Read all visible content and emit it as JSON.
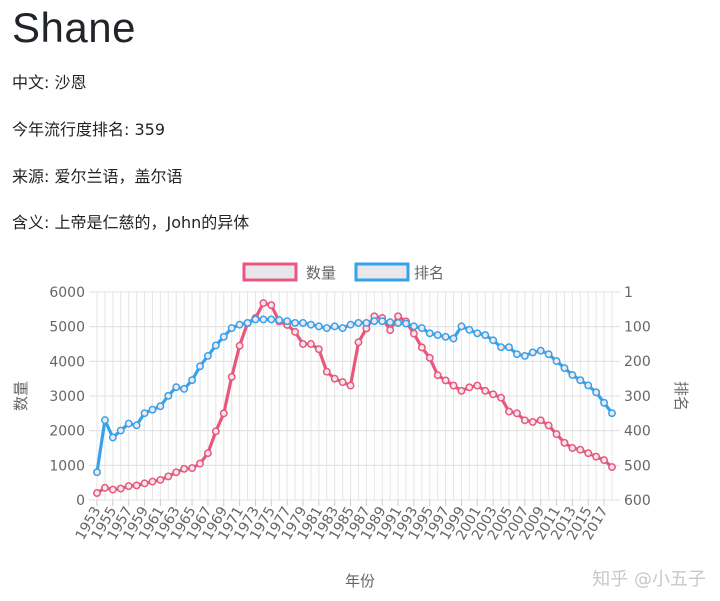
{
  "header": {
    "name": "Shane",
    "chinese": "中文: 沙恩",
    "rank": "今年流行度排名: 359",
    "origin": "来源: 爱尔兰语，盖尔语",
    "meaning": "含义: 上帝是仁慈的，John的异体"
  },
  "watermark": "知乎 @小五子",
  "chart_data": {
    "type": "line",
    "xlabel": "年份",
    "x": [
      1953,
      1954,
      1955,
      1956,
      1957,
      1958,
      1959,
      1960,
      1961,
      1962,
      1963,
      1964,
      1965,
      1966,
      1967,
      1968,
      1969,
      1970,
      1971,
      1972,
      1973,
      1974,
      1975,
      1976,
      1977,
      1978,
      1979,
      1980,
      1981,
      1982,
      1983,
      1984,
      1985,
      1986,
      1987,
      1988,
      1989,
      1990,
      1991,
      1992,
      1993,
      1994,
      1995,
      1996,
      1997,
      1998,
      1999,
      2000,
      2001,
      2002,
      2003,
      2004,
      2005,
      2006,
      2007,
      2008,
      2009,
      2010,
      2011,
      2012,
      2013,
      2014,
      2015,
      2016,
      2017,
      2018
    ],
    "xticks": [
      1953,
      1955,
      1957,
      1959,
      1961,
      1963,
      1965,
      1967,
      1969,
      1971,
      1973,
      1975,
      1977,
      1979,
      1981,
      1983,
      1985,
      1987,
      1989,
      1991,
      1993,
      1995,
      1997,
      1999,
      2001,
      2003,
      2005,
      2007,
      2009,
      2011,
      2013,
      2015,
      2017
    ],
    "y_left": {
      "label": "数量",
      "ylim": [
        0,
        6000
      ],
      "ticks": [
        0,
        1000,
        2000,
        3000,
        4000,
        5000,
        6000
      ]
    },
    "y_right": {
      "label": "排名",
      "ylim": [
        1,
        600
      ],
      "reversed": true,
      "ticks": [
        1,
        100,
        200,
        300,
        400,
        500,
        600
      ]
    },
    "series": [
      {
        "name": "数量",
        "axis": "left",
        "color": "#e8577d",
        "values": [
          200,
          350,
          300,
          330,
          400,
          420,
          480,
          530,
          580,
          680,
          800,
          900,
          920,
          1050,
          1350,
          1980,
          2500,
          3550,
          4450,
          5100,
          5250,
          5680,
          5620,
          5150,
          5050,
          4850,
          4500,
          4500,
          4350,
          3700,
          3500,
          3400,
          3300,
          4550,
          4950,
          5300,
          5250,
          4900,
          5300,
          5150,
          4800,
          4400,
          4100,
          3600,
          3450,
          3300,
          3150,
          3250,
          3300,
          3150,
          3050,
          2950,
          2550,
          2500,
          2300,
          2250,
          2300,
          2150,
          1900,
          1650,
          1500,
          1450,
          1350,
          1250,
          1150,
          950
        ]
      },
      {
        "name": "排名",
        "axis": "right",
        "color": "#36a2eb",
        "values": [
          520,
          370,
          420,
          400,
          380,
          385,
          350,
          340,
          330,
          300,
          275,
          280,
          255,
          215,
          185,
          155,
          130,
          105,
          95,
          90,
          80,
          80,
          80,
          82,
          85,
          90,
          90,
          95,
          100,
          105,
          100,
          105,
          95,
          90,
          90,
          85,
          85,
          88,
          90,
          92,
          100,
          105,
          120,
          125,
          130,
          135,
          100,
          110,
          120,
          125,
          140,
          160,
          160,
          180,
          185,
          175,
          170,
          180,
          200,
          220,
          240,
          255,
          270,
          290,
          320,
          350
        ]
      }
    ]
  }
}
